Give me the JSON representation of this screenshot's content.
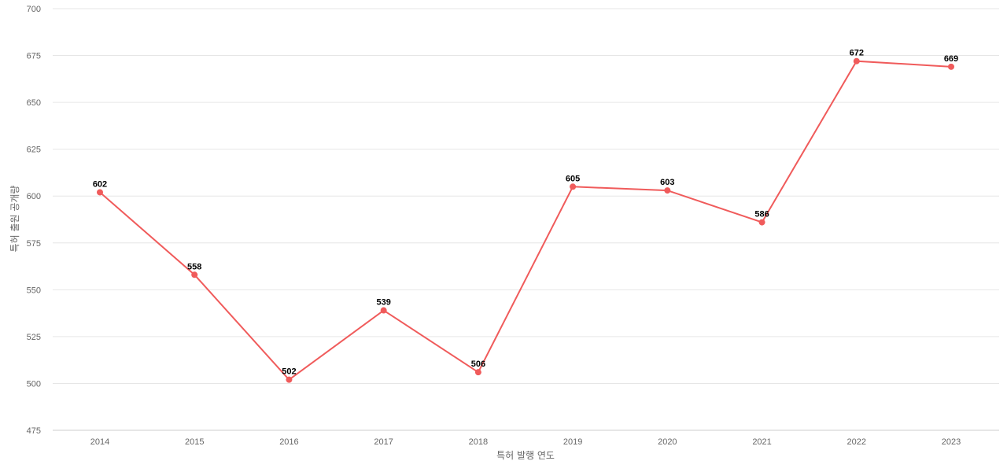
{
  "colors": {
    "series": "#f05b5b",
    "grid": "#e6e6e6",
    "tick_text": "#666666",
    "label_text": "#000000"
  },
  "chart_data": {
    "type": "line",
    "title": "",
    "xlabel": "특허 발행 연도",
    "ylabel": "특허 출원 공개량",
    "categories": [
      "2014",
      "2015",
      "2016",
      "2017",
      "2018",
      "2019",
      "2020",
      "2021",
      "2022",
      "2023"
    ],
    "series": [
      {
        "values": [
          602,
          558,
          502,
          539,
          506,
          605,
          603,
          586,
          672,
          669
        ]
      }
    ],
    "ylim": [
      475,
      700
    ],
    "yticks": [
      475,
      500,
      525,
      550,
      575,
      600,
      625,
      650,
      675,
      700
    ],
    "grid": true,
    "data_labels": true,
    "legend": "none"
  }
}
